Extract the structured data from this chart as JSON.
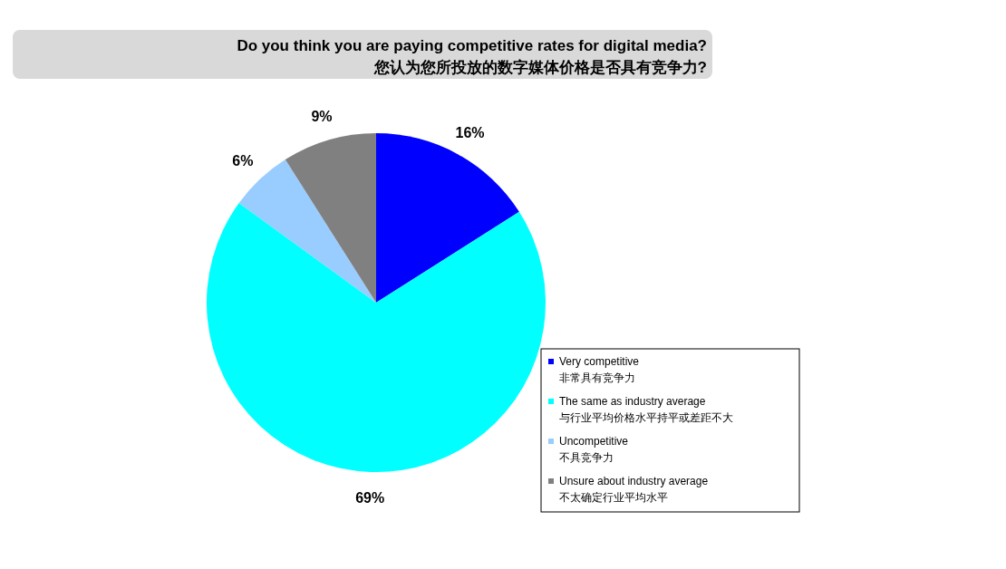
{
  "chart_data": {
    "type": "pie",
    "title": "Do you think you are paying competitive rates for digital media?",
    "subtitle": "您认为您所投放的数字媒体价格是否具有竞争力?",
    "categories": [
      "Very competitive\n非常具有竞争力",
      "The same as industry average\n与行业平均价格水平持平或差距不大",
      "Uncompetitive\n不具竞争力",
      "Unsure about industry average\n不太确定行业平均水平"
    ],
    "values": [
      16,
      69,
      6,
      9
    ],
    "colors": [
      "#0000ff",
      "#00ffff",
      "#99ccff",
      "#808080"
    ],
    "value_labels": [
      "16%",
      "69%",
      "6%",
      "9%"
    ],
    "legend": "bottom right"
  }
}
